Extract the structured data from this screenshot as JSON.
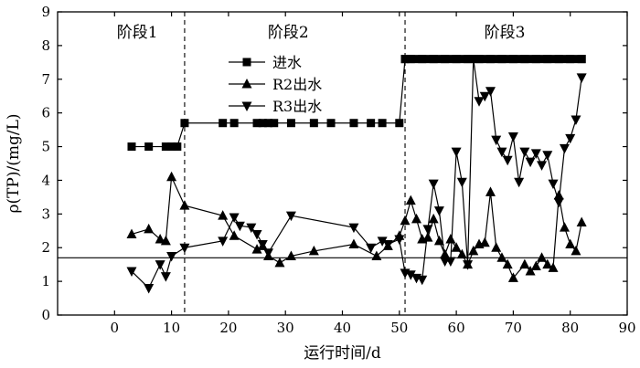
{
  "chart_data": {
    "type": "line",
    "xlabel": "运行时间/d",
    "ylabel": "ρ(TP)/(mg/L)",
    "xlim": [
      -10,
      90
    ],
    "ylim": [
      0,
      9
    ],
    "xticks": [
      0,
      10,
      20,
      30,
      40,
      50,
      60,
      70,
      80,
      90
    ],
    "yticks": [
      0,
      1,
      2,
      3,
      4,
      5,
      6,
      7,
      8,
      9
    ],
    "grid": false,
    "legend_position": "top-center",
    "reference_line_y": 1.7,
    "stage_dividers": [
      12.3,
      51
    ],
    "stages": [
      {
        "label": "阶段1",
        "x": 4
      },
      {
        "label": "阶段2",
        "x": 30.5
      },
      {
        "label": "阶段3",
        "x": 68.5
      }
    ],
    "series": [
      {
        "name": "进水",
        "marker": "square",
        "x": [
          3,
          6,
          9,
          10,
          11,
          12.3,
          19,
          21,
          25,
          26,
          27,
          28,
          31,
          35,
          38,
          42,
          45,
          47,
          50,
          51,
          52,
          54,
          56,
          58,
          60,
          62,
          64,
          66,
          68,
          70,
          72,
          74,
          76,
          78,
          80,
          82
        ],
        "y": [
          5.0,
          5.0,
          5.0,
          5.0,
          5.0,
          5.7,
          5.7,
          5.7,
          5.7,
          5.7,
          5.7,
          5.7,
          5.7,
          5.7,
          5.7,
          5.7,
          5.7,
          5.7,
          5.7,
          7.6,
          7.6,
          7.6,
          7.6,
          7.6,
          7.6,
          7.6,
          7.6,
          7.6,
          7.6,
          7.6,
          7.6,
          7.6,
          7.6,
          7.6,
          7.6,
          7.6
        ]
      },
      {
        "name": "R2出水",
        "marker": "triangle-up",
        "x": [
          3,
          6,
          8,
          9,
          10,
          12.3,
          19,
          21,
          25,
          26,
          27,
          29,
          31,
          35,
          42,
          46,
          48,
          50,
          51,
          52,
          53,
          54,
          55,
          56,
          57,
          58,
          59,
          60,
          61,
          62,
          63,
          64,
          65,
          66,
          67,
          68,
          69,
          70,
          72,
          73,
          74,
          75,
          76,
          77,
          78,
          79,
          80,
          81,
          82
        ],
        "y": [
          2.4,
          2.55,
          2.25,
          2.2,
          4.1,
          3.25,
          2.95,
          2.35,
          1.95,
          2.05,
          1.75,
          1.55,
          1.75,
          1.9,
          2.1,
          1.75,
          2.05,
          2.35,
          2.8,
          3.4,
          2.85,
          2.25,
          2.3,
          2.85,
          2.2,
          1.8,
          2.25,
          2.0,
          1.8,
          1.5,
          1.9,
          2.1,
          2.15,
          3.65,
          2.0,
          1.7,
          1.5,
          1.1,
          1.5,
          1.3,
          1.45,
          1.7,
          1.5,
          1.4,
          3.55,
          2.6,
          2.1,
          1.9,
          2.75
        ]
      },
      {
        "name": "R3出水",
        "marker": "triangle-down",
        "x": [
          3,
          6,
          8,
          9,
          10,
          12.3,
          19,
          21,
          22,
          24,
          25,
          26,
          27,
          31,
          42,
          45,
          47,
          48,
          50,
          51,
          52,
          53,
          54,
          55,
          56,
          57,
          58,
          59,
          60,
          61,
          62,
          63,
          64,
          65,
          66,
          67,
          68,
          69,
          70,
          71,
          72,
          73,
          74,
          75,
          76,
          77,
          78,
          79,
          80,
          81,
          82
        ],
        "y": [
          1.3,
          0.8,
          1.5,
          1.15,
          1.75,
          2.0,
          2.2,
          2.9,
          2.65,
          2.6,
          2.4,
          2.1,
          1.85,
          2.95,
          2.6,
          2.0,
          2.2,
          2.1,
          2.25,
          1.25,
          1.2,
          1.1,
          1.05,
          2.55,
          3.9,
          3.1,
          1.6,
          1.6,
          4.85,
          3.95,
          1.5,
          7.6,
          6.35,
          6.5,
          6.65,
          5.2,
          4.85,
          4.6,
          5.3,
          3.95,
          4.85,
          4.55,
          4.8,
          4.45,
          4.75,
          3.9,
          3.35,
          4.95,
          5.25,
          5.8,
          7.05
        ]
      }
    ]
  }
}
